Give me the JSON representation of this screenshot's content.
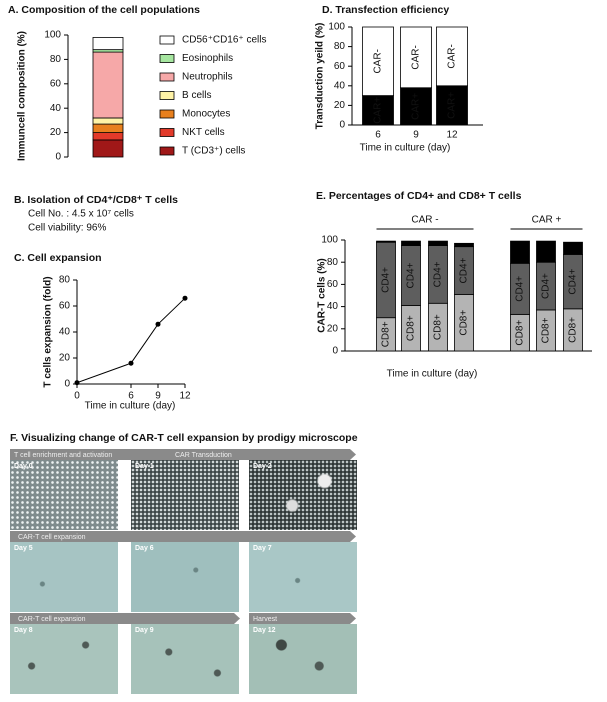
{
  "chart_data": [
    {
      "type": "stacked_bar",
      "title": "A. Composition of the cell populations",
      "ylabel": "Immuncell composition (%)",
      "categories": [
        null
      ],
      "series": [
        {
          "name": "T (CD3⁺) cells",
          "color": "#a01818",
          "values": [
            14
          ]
        },
        {
          "name": "NKT cells",
          "color": "#e23a2a",
          "values": [
            6
          ]
        },
        {
          "name": "Monocytes",
          "color": "#e8801e",
          "values": [
            7
          ]
        },
        {
          "name": "B cells",
          "color": "#fff3a6",
          "values": [
            5
          ]
        },
        {
          "name": "Neutrophils",
          "color": "#f6a8a8",
          "values": [
            54
          ]
        },
        {
          "name": "Eosinophils",
          "color": "#a6e6a0",
          "values": [
            2
          ]
        },
        {
          "name": "CD56⁺CD16⁺ cells",
          "color": "#ffffff",
          "values": [
            10
          ]
        }
      ],
      "ylim": [
        0,
        100
      ],
      "yticks": [
        0,
        20,
        40,
        60,
        80,
        100
      ],
      "legend": "right"
    },
    {
      "type": "stacked_bar",
      "title": "D. Transfection efficiency",
      "ylabel": "Transduction yeild (%)",
      "xlabel": "Time in culture (day)",
      "categories": [
        6,
        9,
        12
      ],
      "series": [
        {
          "name": "CAR+",
          "color": "#000000",
          "values": [
            30,
            38,
            40
          ]
        },
        {
          "name": "CAR-",
          "color": "#ffffff",
          "values": [
            70,
            62,
            60
          ]
        }
      ],
      "ylim": [
        0,
        100
      ],
      "yticks": [
        0,
        20,
        40,
        60,
        80,
        100
      ]
    },
    {
      "type": "line",
      "title": "C. Cell expansion",
      "ylabel": "T cells expansion (fold)",
      "xlabel": "Time in culture (day)",
      "x": [
        0,
        6,
        9,
        12
      ],
      "values": [
        1,
        16,
        46,
        66
      ],
      "color": "#000000",
      "xlim": [
        0,
        12
      ],
      "xticks": [
        0,
        6,
        9,
        12
      ],
      "ylim": [
        0,
        80
      ],
      "yticks": [
        0,
        20,
        40,
        60,
        80
      ]
    },
    {
      "type": "stacked_bar",
      "title": "E. Percentages of CD4+ and CD8+ T cells",
      "ylabel": "CAR-T cells (%)",
      "xlabel": "Time in culture (day)",
      "group_labels": [
        "CAR -",
        "CAR +"
      ],
      "categories": [
        null,
        null,
        null,
        null,
        null,
        null,
        null
      ],
      "series": [
        {
          "name": "CD8+",
          "color": "#b4b4b4",
          "values": [
            30,
            41,
            43,
            51,
            33,
            37,
            38
          ]
        },
        {
          "name": "CD4+",
          "color": "#5e5e5e",
          "values": [
            68,
            54,
            52,
            43,
            46,
            43,
            49
          ]
        },
        {
          "color": "#000000",
          "values": [
            1,
            4,
            4,
            3,
            20,
            19,
            11
          ]
        }
      ],
      "ylim": [
        0,
        100
      ],
      "yticks": [
        0,
        20,
        40,
        60,
        80,
        100
      ]
    }
  ],
  "panel_b": {
    "title": "B. Isolation of CD4⁺/CD8⁺ T cells",
    "lines": [
      "Cell No. : 4.5 x 10⁷ cells",
      "Cell viability:  96%"
    ]
  },
  "panel_f": {
    "title": "F. Visualizing change of CAR-T cell expansion by prodigy microscope",
    "rows": [
      {
        "arrows": [
          "T cell enrichment and activation",
          "CAR Transduction"
        ],
        "images": [
          "Day 0",
          "Day 1",
          "Day 2"
        ]
      },
      {
        "arrows": [
          "CAR-T cell expansion"
        ],
        "images": [
          "Day 5",
          "Day 6",
          "Day 7"
        ]
      },
      {
        "arrows": [
          "CAR-T cell expansion",
          "Harvest"
        ],
        "images": [
          "Day 8",
          "Day 9",
          "Day 12"
        ]
      }
    ]
  }
}
